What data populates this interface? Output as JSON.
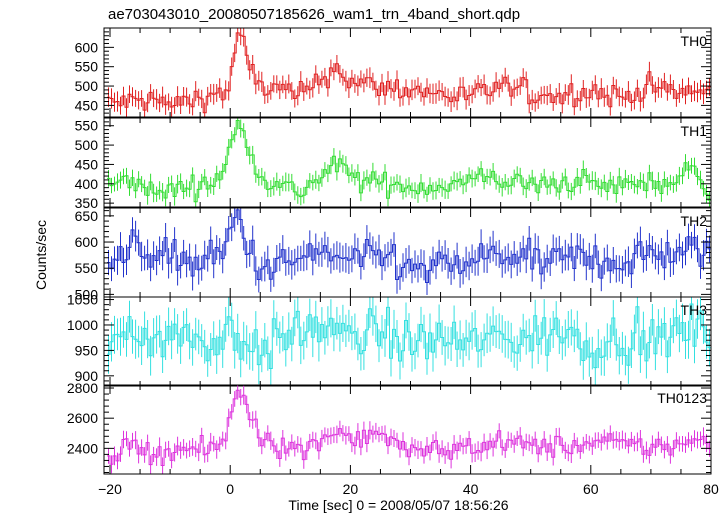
{
  "title": "ae703043010_20080507185626_wam1_trn_4band_short.qdp",
  "chart_data": {
    "type": "line",
    "title": "ae703043010_20080507185626_wam1_trn_4band_short.qdp",
    "xlabel": "Time [sec] 0 = 2008/05/07 18:56:26",
    "ylabel": "Counts/sec",
    "xlim": [
      -21,
      80
    ],
    "bin_width_sec": 0.5,
    "x_ticks": [
      -20,
      0,
      20,
      40,
      60,
      80
    ],
    "grid": false,
    "panels": [
      {
        "name": "TH0",
        "color": "#e02020",
        "ylim": [
          420,
          650
        ],
        "y_ticks": [
          450,
          500,
          550,
          600
        ],
        "events": [
          {
            "x": -20.5,
            "y": 455
          },
          {
            "x": -13,
            "y": 465
          },
          {
            "x": -10,
            "y": 450
          },
          {
            "x": -5,
            "y": 470
          },
          {
            "x": -2,
            "y": 480
          },
          {
            "x": 0,
            "y": 495
          },
          {
            "x": 1,
            "y": 630
          },
          {
            "x": 2,
            "y": 620
          },
          {
            "x": 3,
            "y": 555
          },
          {
            "x": 5,
            "y": 500
          },
          {
            "x": 8,
            "y": 490
          },
          {
            "x": 12,
            "y": 475
          },
          {
            "x": 16,
            "y": 530
          },
          {
            "x": 18,
            "y": 550
          },
          {
            "x": 20,
            "y": 510
          },
          {
            "x": 24,
            "y": 500
          },
          {
            "x": 30,
            "y": 490
          },
          {
            "x": 35,
            "y": 480
          },
          {
            "x": 40,
            "y": 470
          },
          {
            "x": 45,
            "y": 500
          },
          {
            "x": 50,
            "y": 480
          },
          {
            "x": 55,
            "y": 475
          },
          {
            "x": 60,
            "y": 490
          },
          {
            "x": 65,
            "y": 470
          },
          {
            "x": 70,
            "y": 500
          },
          {
            "x": 75,
            "y": 480
          },
          {
            "x": 79.5,
            "y": 490
          }
        ]
      },
      {
        "name": "TH1",
        "color": "#33dd33",
        "ylim": [
          340,
          570
        ],
        "y_ticks": [
          350,
          400,
          450,
          500,
          550
        ],
        "events": [
          {
            "x": -20.5,
            "y": 395
          },
          {
            "x": -16,
            "y": 410
          },
          {
            "x": -13,
            "y": 375
          },
          {
            "x": -8,
            "y": 390
          },
          {
            "x": -3,
            "y": 400
          },
          {
            "x": -1,
            "y": 440
          },
          {
            "x": 0.5,
            "y": 520
          },
          {
            "x": 1.5,
            "y": 555
          },
          {
            "x": 3,
            "y": 510
          },
          {
            "x": 5,
            "y": 420
          },
          {
            "x": 8,
            "y": 395
          },
          {
            "x": 12,
            "y": 380
          },
          {
            "x": 16,
            "y": 430
          },
          {
            "x": 18,
            "y": 450
          },
          {
            "x": 21,
            "y": 410
          },
          {
            "x": 26,
            "y": 400
          },
          {
            "x": 32,
            "y": 390
          },
          {
            "x": 38,
            "y": 400
          },
          {
            "x": 43,
            "y": 420
          },
          {
            "x": 48,
            "y": 400
          },
          {
            "x": 53,
            "y": 395
          },
          {
            "x": 58,
            "y": 410
          },
          {
            "x": 63,
            "y": 390
          },
          {
            "x": 68,
            "y": 405
          },
          {
            "x": 73,
            "y": 400
          },
          {
            "x": 77,
            "y": 440
          },
          {
            "x": 79.5,
            "y": 390
          }
        ]
      },
      {
        "name": "TH2",
        "color": "#2233cc",
        "ylim": [
          495,
          665
        ],
        "y_ticks": [
          500,
          550,
          600,
          650
        ],
        "events": [
          {
            "x": -20.5,
            "y": 560
          },
          {
            "x": -15,
            "y": 590
          },
          {
            "x": -10,
            "y": 570
          },
          {
            "x": -5,
            "y": 560
          },
          {
            "x": -1,
            "y": 575
          },
          {
            "x": 0.5,
            "y": 640
          },
          {
            "x": 1.5,
            "y": 655
          },
          {
            "x": 3,
            "y": 580
          },
          {
            "x": 6,
            "y": 545
          },
          {
            "x": 10,
            "y": 560
          },
          {
            "x": 14,
            "y": 580
          },
          {
            "x": 18,
            "y": 570
          },
          {
            "x": 22,
            "y": 560
          },
          {
            "x": 26,
            "y": 575
          },
          {
            "x": 30,
            "y": 545
          },
          {
            "x": 35,
            "y": 550
          },
          {
            "x": 40,
            "y": 560
          },
          {
            "x": 45,
            "y": 580
          },
          {
            "x": 50,
            "y": 560
          },
          {
            "x": 55,
            "y": 565
          },
          {
            "x": 60,
            "y": 570
          },
          {
            "x": 65,
            "y": 560
          },
          {
            "x": 70,
            "y": 580
          },
          {
            "x": 75,
            "y": 575
          },
          {
            "x": 79.5,
            "y": 585
          }
        ]
      },
      {
        "name": "TH3",
        "color": "#33e0e0",
        "ylim": [
          880,
          1055
        ],
        "y_ticks": [
          900,
          950,
          1000,
          1050
        ],
        "events": [
          {
            "x": -20.5,
            "y": 960
          },
          {
            "x": -16,
            "y": 1000
          },
          {
            "x": -12,
            "y": 970
          },
          {
            "x": -7,
            "y": 980
          },
          {
            "x": -3,
            "y": 960
          },
          {
            "x": 0,
            "y": 990
          },
          {
            "x": 2,
            "y": 970
          },
          {
            "x": 6,
            "y": 950
          },
          {
            "x": 10,
            "y": 980
          },
          {
            "x": 15,
            "y": 1000
          },
          {
            "x": 20,
            "y": 970
          },
          {
            "x": 25,
            "y": 990
          },
          {
            "x": 30,
            "y": 960
          },
          {
            "x": 35,
            "y": 975
          },
          {
            "x": 40,
            "y": 960
          },
          {
            "x": 45,
            "y": 980
          },
          {
            "x": 50,
            "y": 970
          },
          {
            "x": 55,
            "y": 990
          },
          {
            "x": 60,
            "y": 960
          },
          {
            "x": 65,
            "y": 980
          },
          {
            "x": 70,
            "y": 960
          },
          {
            "x": 75,
            "y": 990
          },
          {
            "x": 79.5,
            "y": 990
          }
        ]
      },
      {
        "name": "TH0123",
        "color": "#dd33dd",
        "ylim": [
          2230,
          2820
        ],
        "y_ticks": [
          2400,
          2600,
          2800
        ],
        "events": [
          {
            "x": -20.5,
            "y": 2340
          },
          {
            "x": -16,
            "y": 2410
          },
          {
            "x": -12,
            "y": 2370
          },
          {
            "x": -8,
            "y": 2400
          },
          {
            "x": -4,
            "y": 2380
          },
          {
            "x": -1,
            "y": 2430
          },
          {
            "x": 0.5,
            "y": 2720
          },
          {
            "x": 1.5,
            "y": 2790
          },
          {
            "x": 3,
            "y": 2660
          },
          {
            "x": 5,
            "y": 2500
          },
          {
            "x": 8,
            "y": 2420
          },
          {
            "x": 12,
            "y": 2380
          },
          {
            "x": 16,
            "y": 2490
          },
          {
            "x": 18,
            "y": 2520
          },
          {
            "x": 21,
            "y": 2450
          },
          {
            "x": 24,
            "y": 2530
          },
          {
            "x": 28,
            "y": 2400
          },
          {
            "x": 32,
            "y": 2380
          },
          {
            "x": 38,
            "y": 2400
          },
          {
            "x": 44,
            "y": 2440
          },
          {
            "x": 50,
            "y": 2420
          },
          {
            "x": 56,
            "y": 2410
          },
          {
            "x": 62,
            "y": 2440
          },
          {
            "x": 68,
            "y": 2410
          },
          {
            "x": 74,
            "y": 2420
          },
          {
            "x": 79.5,
            "y": 2450
          }
        ]
      }
    ]
  }
}
